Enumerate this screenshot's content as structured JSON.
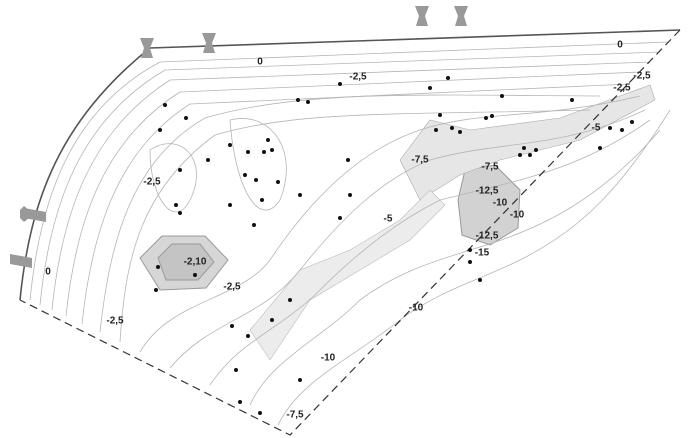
{
  "labels": [
    "0",
    "0",
    "0",
    "-2,5",
    "-2,5",
    "-2,5",
    "-2,5",
    "-2,5",
    "-2,5",
    "-2,10",
    "-5",
    "-5",
    "-7,5",
    "-7,5",
    "-7,5",
    "-10",
    "-10",
    "-10",
    "-10",
    "-12,5",
    "-12,5",
    "-15"
  ]
}
